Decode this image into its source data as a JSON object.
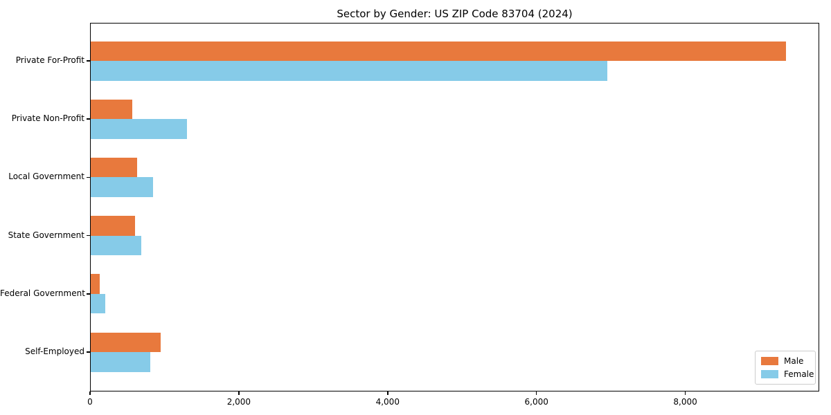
{
  "title": "Sector by Gender: US ZIP Code 83704 (2024)",
  "chart_data": {
    "type": "bar",
    "orientation": "horizontal",
    "title": "Sector by Gender: US ZIP Code 83704 (2024)",
    "xlabel": "",
    "ylabel": "",
    "grid": false,
    "xlim": [
      0,
      9800
    ],
    "xticks": [
      0,
      2000,
      4000,
      6000,
      8000
    ],
    "xtick_labels": [
      "0",
      "2,000",
      "4,000",
      "6,000",
      "8,000"
    ],
    "categories": [
      "Private For-Profit",
      "Private Non-Profit",
      "Local Government",
      "State Government",
      "Federal Government",
      "Self-Employed"
    ],
    "series": [
      {
        "name": "Male",
        "color": "#e8793d",
        "values": [
          9340,
          560,
          620,
          600,
          120,
          940
        ]
      },
      {
        "name": "Female",
        "color": "#86cbe8",
        "values": [
          6940,
          1290,
          840,
          680,
          200,
          800
        ]
      }
    ],
    "legend": {
      "position": "lower right",
      "items": [
        {
          "label": "Male",
          "color": "#e8793d"
        },
        {
          "label": "Female",
          "color": "#86cbe8"
        }
      ]
    }
  }
}
